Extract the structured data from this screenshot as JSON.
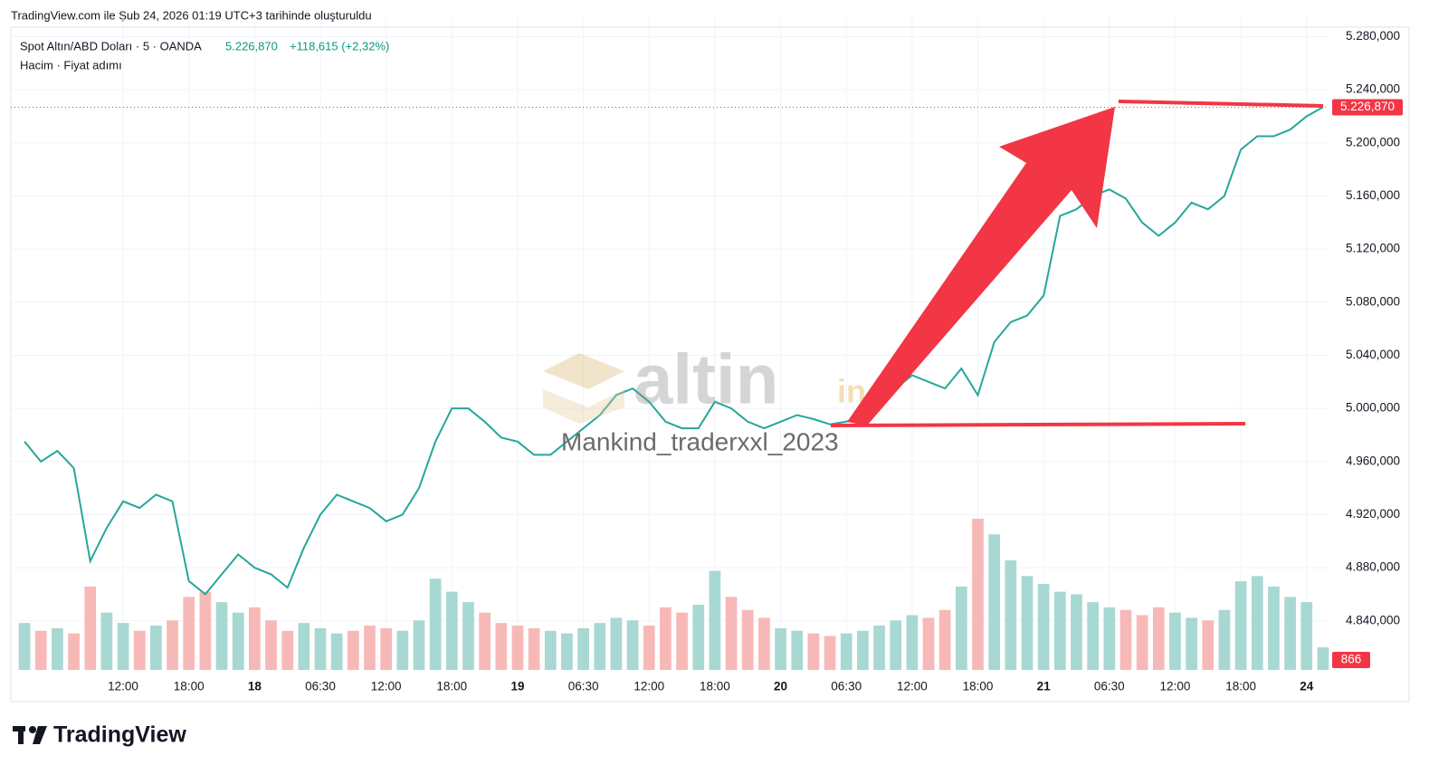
{
  "header": "TradingView.com ile Şub 24, 2026 01:19 UTC+3 tarihinde oluşturuldu",
  "last": "5.226,870",
  "change": "+118,615 (+2,32%)",
  "watermark": [
    "altin",
    "in",
    "Mankind_traderxxl_2023"
  ],
  "footer": "TradingView",
  "chart_data": {
    "type": "line",
    "categories": [
      null,
      null,
      null,
      null,
      null,
      null,
      "12:00",
      null,
      null,
      null,
      "18:00",
      null,
      null,
      null,
      "18",
      null,
      null,
      null,
      "06:30",
      null,
      null,
      null,
      "12:00",
      null,
      null,
      null,
      "18:00",
      null,
      null,
      null,
      "19",
      null,
      null,
      null,
      "06:30",
      null,
      null,
      null,
      "12:00",
      null,
      null,
      null,
      "18:00",
      null,
      null,
      null,
      "20",
      null,
      null,
      null,
      "06:30",
      null,
      null,
      null,
      "12:00",
      null,
      null,
      null,
      "18:00",
      null,
      null,
      null,
      "21",
      null,
      null,
      null,
      "06:30",
      null,
      null,
      null,
      "12:00",
      null,
      null,
      null,
      "18:00",
      null,
      null,
      null,
      "24",
      null
    ],
    "series": [
      {
        "name": "Spot Altın/ABD Doları · 5 · OANDA",
        "color": "#26a69a",
        "values": [
          4975000,
          4960000,
          4968000,
          4955000,
          4885000,
          4910000,
          4930000,
          4925000,
          4935000,
          4930000,
          4870000,
          4860000,
          4875000,
          4890000,
          4880000,
          4875000,
          4865000,
          4895000,
          4920000,
          4935000,
          4930000,
          4925000,
          4915000,
          4920000,
          4940000,
          4975000,
          5000000,
          5000000,
          4990000,
          4978000,
          4975000,
          4965000,
          4965000,
          4975000,
          4985000,
          4995000,
          5010000,
          5015000,
          5005000,
          4990000,
          4985000,
          4985000,
          5005000,
          5000000,
          4990000,
          4985000,
          4990000,
          4995000,
          4992000,
          4988000,
          4990000,
          4995000,
          5005000,
          5015000,
          5025000,
          5020000,
          5015000,
          5030000,
          5010000,
          5050000,
          5065000,
          5070000,
          5085000,
          5145000,
          5150000,
          5160000,
          5165000,
          5158000,
          5140000,
          5130000,
          5140000,
          5155000,
          5150000,
          5160000,
          5195000,
          5205000,
          5205000,
          5210000,
          5220000,
          5226870
        ]
      },
      {
        "name": "Hacim · Fiyat adımı",
        "axis": "y2",
        "up_color": "#a8d8d2",
        "down_color": "#f7b9b7",
        "values": [
          1800,
          1500,
          1600,
          1400,
          3200,
          2200,
          1800,
          1500,
          1700,
          1900,
          2800,
          3000,
          2600,
          2200,
          2400,
          1900,
          1500,
          1800,
          1600,
          1400,
          1500,
          1700,
          1600,
          1500,
          1900,
          3500,
          3000,
          2600,
          2200,
          1800,
          1700,
          1600,
          1500,
          1400,
          1600,
          1800,
          2000,
          1900,
          1700,
          2400,
          2200,
          2500,
          3800,
          2800,
          2300,
          2000,
          1600,
          1500,
          1400,
          1300,
          1400,
          1500,
          1700,
          1900,
          2100,
          2000,
          2300,
          3200,
          5800,
          5200,
          4200,
          3600,
          3300,
          3000,
          2900,
          2600,
          2400,
          2300,
          2100,
          2400,
          2200,
          2000,
          1900,
          2300,
          3400,
          3600,
          3200,
          2800,
          2600,
          866
        ]
      }
    ],
    "ylim": [
      4803000,
      5294000
    ],
    "yticks": [
      {
        "value": 5280000,
        "label": "5.280,000"
      },
      {
        "value": 5240000,
        "label": "5.240,000"
      },
      {
        "value": 5200000,
        "label": "5.200,000"
      },
      {
        "value": 5160000,
        "label": "5.160,000"
      },
      {
        "value": 5120000,
        "label": "5.120,000"
      },
      {
        "value": 5080000,
        "label": "5.080,000"
      },
      {
        "value": 5040000,
        "label": "5.040,000"
      },
      {
        "value": 5000000,
        "label": "5.000,000"
      },
      {
        "value": 4960000,
        "label": "4.960,000"
      },
      {
        "value": 4920000,
        "label": "4.920,000"
      },
      {
        "value": 4880000,
        "label": "4.880,000"
      },
      {
        "value": 4840000,
        "label": "4.840,000"
      }
    ],
    "y2lim": [
      0,
      25000
    ],
    "grid": true,
    "last_color": "#f23645"
  }
}
